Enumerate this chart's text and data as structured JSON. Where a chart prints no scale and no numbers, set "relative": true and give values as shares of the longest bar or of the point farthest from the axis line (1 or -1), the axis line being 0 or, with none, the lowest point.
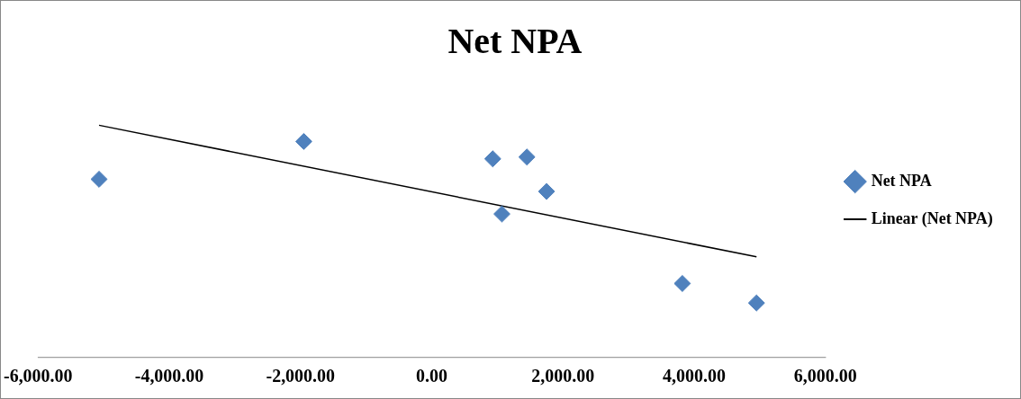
{
  "chart_data": {
    "type": "scatter",
    "title": "Net NPA",
    "relative": true,
    "marker": "diamond",
    "legend": "right",
    "grid": false,
    "tick_labels": "x",
    "xlim": [
      -6000,
      6000
    ],
    "xticks": [
      {
        "value": -6000,
        "label": "-6,000.00"
      },
      {
        "value": -4000,
        "label": "-4,000.00"
      },
      {
        "value": -2000,
        "label": "-2,000.00"
      },
      {
        "value": 0,
        "label": "0.00"
      },
      {
        "value": 2000,
        "label": "2,000.00"
      },
      {
        "value": 4000,
        "label": "4,000.00"
      },
      {
        "value": 6000,
        "label": "6,000.00"
      }
    ],
    "series": [
      {
        "name": "Net NPA",
        "color": "#4f81bd",
        "x": [
          -5070,
          -1950,
          930,
          1450,
          1750,
          1070,
          3820,
          4950
        ],
        "values": [
          0.767,
          0.93,
          0.855,
          0.863,
          0.714,
          0.617,
          0.317,
          0.233
        ]
      },
      {
        "name": "Linear (Net NPA)",
        "type": "line",
        "color": "#000000",
        "marker": "none",
        "x": [
          -5070,
          4950
        ],
        "values": [
          1,
          0.432
        ]
      }
    ]
  }
}
